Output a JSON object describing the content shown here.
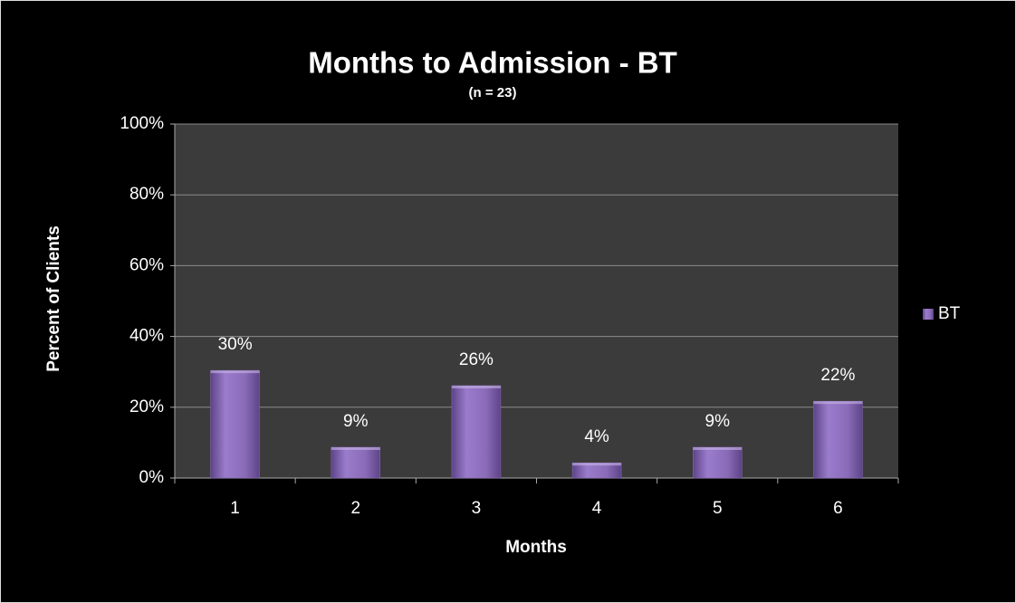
{
  "chart_data": {
    "type": "bar",
    "title": "Months to Admission - BT",
    "subtitle": "(n = 23)",
    "x_label": "Months",
    "y_label": "Percent of Clients",
    "categories": [
      "1",
      "2",
      "3",
      "4",
      "5",
      "6"
    ],
    "series": [
      {
        "name": "BT",
        "color": "#8a6bb8",
        "values": [
          30.4,
          8.7,
          26.1,
          4.3,
          8.7,
          21.7
        ],
        "value_labels": [
          "30%",
          "9%",
          "26%",
          "4%",
          "9%",
          "22%"
        ]
      }
    ],
    "ylim": [
      0,
      100
    ],
    "yticks": [
      {
        "value": 0,
        "label": "0%"
      },
      {
        "value": 20,
        "label": "20%"
      },
      {
        "value": 40,
        "label": "40%"
      },
      {
        "value": 60,
        "label": "60%"
      },
      {
        "value": 80,
        "label": "80%"
      },
      {
        "value": 100,
        "label": "100%"
      }
    ],
    "grid": true,
    "legend": "right"
  }
}
